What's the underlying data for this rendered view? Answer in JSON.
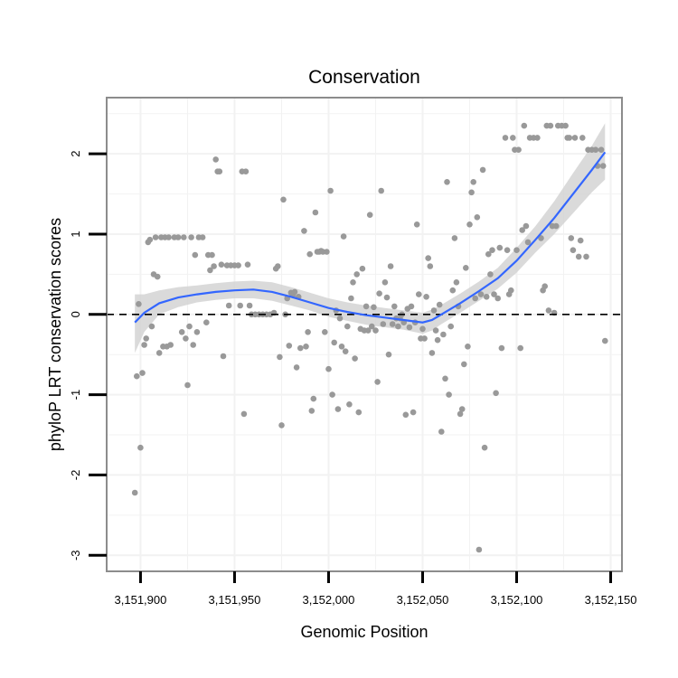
{
  "chart_data": {
    "type": "scatter",
    "title": "Conservation",
    "xlabel": "Genomic Position",
    "ylabel": "phyloP LRT conservation scores",
    "xlim": [
      3151882,
      3152156
    ],
    "ylim": [
      -3.2,
      2.7
    ],
    "x_ticks": [
      3151900,
      3151950,
      3152000,
      3152050,
      3152100,
      3152150
    ],
    "x_tick_labels": [
      "3,151,900",
      "3,151,950",
      "3,152,000",
      "3,152,050",
      "3,152,100",
      "3,152,150"
    ],
    "y_ticks": [
      -3,
      -2,
      -1,
      0,
      1,
      2
    ],
    "y_tick_labels": [
      "-3",
      "-2",
      "-1",
      "0",
      "1",
      "2"
    ],
    "grid": true,
    "reference_line": {
      "y": 0,
      "style": "dashed"
    },
    "colors": {
      "points": "#999999",
      "smooth": "#3366ff",
      "ribbon": "#d3d3d3",
      "grid": "#f2f2f2",
      "panel_border": "#8c8c8c",
      "reference": "#000000"
    },
    "points": [
      [
        3151897,
        -2.22
      ],
      [
        3151898,
        -0.77
      ],
      [
        3151899,
        0.13
      ],
      [
        3151900,
        -1.66
      ],
      [
        3151901,
        -0.73
      ],
      [
        3151902,
        -0.38
      ],
      [
        3151903,
        -0.3
      ],
      [
        3151904,
        0.9
      ],
      [
        3151905,
        0.93
      ],
      [
        3151906,
        -0.15
      ],
      [
        3151907,
        0.5
      ],
      [
        3151908,
        0.96
      ],
      [
        3151909,
        0.47
      ],
      [
        3151910,
        -0.48
      ],
      [
        3151911,
        0.96
      ],
      [
        3151912,
        -0.4
      ],
      [
        3151913,
        0.96
      ],
      [
        3151914,
        -0.4
      ],
      [
        3151915,
        0.96
      ],
      [
        3151916,
        -0.38
      ],
      [
        3151918,
        0.96
      ],
      [
        3151920,
        0.96
      ],
      [
        3151922,
        -0.22
      ],
      [
        3151923,
        0.96
      ],
      [
        3151924,
        -0.3
      ],
      [
        3151925,
        -0.88
      ],
      [
        3151926,
        -0.15
      ],
      [
        3151927,
        0.96
      ],
      [
        3151928,
        -0.38
      ],
      [
        3151929,
        0.74
      ],
      [
        3151930,
        -0.22
      ],
      [
        3151931,
        0.96
      ],
      [
        3151933,
        0.96
      ],
      [
        3151935,
        -0.1
      ],
      [
        3151936,
        0.74
      ],
      [
        3151937,
        0.55
      ],
      [
        3151938,
        0.74
      ],
      [
        3151939,
        0.6
      ],
      [
        3151940,
        1.93
      ],
      [
        3151941,
        1.78
      ],
      [
        3151942,
        1.78
      ],
      [
        3151943,
        0.62
      ],
      [
        3151944,
        -0.52
      ],
      [
        3151946,
        0.61
      ],
      [
        3151947,
        0.11
      ],
      [
        3151948,
        0.61
      ],
      [
        3151950,
        0.61
      ],
      [
        3151952,
        0.61
      ],
      [
        3151953,
        0.11
      ],
      [
        3151954,
        1.78
      ],
      [
        3151955,
        -1.24
      ],
      [
        3151956,
        1.78
      ],
      [
        3151957,
        0.62
      ],
      [
        3151958,
        0.11
      ],
      [
        3151959,
        0.0
      ],
      [
        3151961,
        0.0
      ],
      [
        3151963,
        0.0
      ],
      [
        3151965,
        0.0
      ],
      [
        3151967,
        0.0
      ],
      [
        3151969,
        0.0
      ],
      [
        3151971,
        0.02
      ],
      [
        3151972,
        0.57
      ],
      [
        3151973,
        0.6
      ],
      [
        3151974,
        -0.53
      ],
      [
        3151975,
        -1.38
      ],
      [
        3151976,
        1.43
      ],
      [
        3151977,
        0.0
      ],
      [
        3151978,
        0.2
      ],
      [
        3151979,
        -0.39
      ],
      [
        3151980,
        0.27
      ],
      [
        3151981,
        0.24
      ],
      [
        3151982,
        0.28
      ],
      [
        3151983,
        -0.66
      ],
      [
        3151984,
        0.22
      ],
      [
        3151985,
        -0.42
      ],
      [
        3151987,
        1.04
      ],
      [
        3151988,
        -0.4
      ],
      [
        3151989,
        -0.22
      ],
      [
        3151990,
        0.75
      ],
      [
        3151991,
        -1.2
      ],
      [
        3151992,
        -1.05
      ],
      [
        3151993,
        1.27
      ],
      [
        3151994,
        0.78
      ],
      [
        3151995,
        0.78
      ],
      [
        3151996,
        0.79
      ],
      [
        3151997,
        0.78
      ],
      [
        3151998,
        -0.22
      ],
      [
        3151999,
        0.78
      ],
      [
        3152000,
        -0.68
      ],
      [
        3152001,
        1.54
      ],
      [
        3152002,
        -1.0
      ],
      [
        3152003,
        -0.35
      ],
      [
        3152004,
        0.05
      ],
      [
        3152005,
        -1.18
      ],
      [
        3152006,
        -0.05
      ],
      [
        3152007,
        -0.4
      ],
      [
        3152008,
        0.97
      ],
      [
        3152009,
        -0.46
      ],
      [
        3152010,
        -0.15
      ],
      [
        3152011,
        -1.12
      ],
      [
        3152012,
        0.2
      ],
      [
        3152013,
        0.4
      ],
      [
        3152014,
        -0.55
      ],
      [
        3152015,
        0.5
      ],
      [
        3152016,
        -1.22
      ],
      [
        3152017,
        -0.18
      ],
      [
        3152018,
        0.57
      ],
      [
        3152019,
        -0.2
      ],
      [
        3152020,
        0.1
      ],
      [
        3152021,
        -0.2
      ],
      [
        3152022,
        1.24
      ],
      [
        3152023,
        -0.15
      ],
      [
        3152024,
        0.09
      ],
      [
        3152025,
        -0.2
      ],
      [
        3152026,
        -0.84
      ],
      [
        3152027,
        0.26
      ],
      [
        3152028,
        1.54
      ],
      [
        3152029,
        -0.12
      ],
      [
        3152030,
        0.4
      ],
      [
        3152031,
        0.21
      ],
      [
        3152032,
        -0.5
      ],
      [
        3152033,
        0.6
      ],
      [
        3152034,
        -0.12
      ],
      [
        3152035,
        0.1
      ],
      [
        3152036,
        -0.05
      ],
      [
        3152037,
        -0.15
      ],
      [
        3152038,
        -0.05
      ],
      [
        3152039,
        0.0
      ],
      [
        3152040,
        -0.1
      ],
      [
        3152041,
        -1.25
      ],
      [
        3152042,
        0.07
      ],
      [
        3152043,
        -0.16
      ],
      [
        3152044,
        0.1
      ],
      [
        3152045,
        -1.22
      ],
      [
        3152046,
        -0.1
      ],
      [
        3152047,
        1.12
      ],
      [
        3152048,
        0.25
      ],
      [
        3152049,
        -0.3
      ],
      [
        3152050,
        -0.18
      ],
      [
        3152051,
        -0.3
      ],
      [
        3152052,
        0.22
      ],
      [
        3152053,
        0.7
      ],
      [
        3152054,
        0.6
      ],
      [
        3152055,
        -0.48
      ],
      [
        3152056,
        0.05
      ],
      [
        3152057,
        -0.2
      ],
      [
        3152058,
        -0.32
      ],
      [
        3152059,
        0.12
      ],
      [
        3152060,
        -1.46
      ],
      [
        3152061,
        -0.25
      ],
      [
        3152062,
        -0.8
      ],
      [
        3152063,
        1.65
      ],
      [
        3152064,
        -1.0
      ],
      [
        3152065,
        -0.15
      ],
      [
        3152066,
        0.3
      ],
      [
        3152067,
        0.95
      ],
      [
        3152068,
        0.4
      ],
      [
        3152069,
        0.1
      ],
      [
        3152070,
        -1.24
      ],
      [
        3152071,
        -1.18
      ],
      [
        3152072,
        -0.62
      ],
      [
        3152073,
        0.58
      ],
      [
        3152074,
        -0.4
      ],
      [
        3152075,
        1.12
      ],
      [
        3152076,
        1.52
      ],
      [
        3152077,
        1.65
      ],
      [
        3152078,
        0.2
      ],
      [
        3152079,
        1.21
      ],
      [
        3152080,
        -2.93
      ],
      [
        3152081,
        0.25
      ],
      [
        3152082,
        1.8
      ],
      [
        3152083,
        -1.66
      ],
      [
        3152084,
        0.22
      ],
      [
        3152085,
        0.75
      ],
      [
        3152086,
        0.5
      ],
      [
        3152087,
        0.8
      ],
      [
        3152088,
        0.25
      ],
      [
        3152089,
        -0.98
      ],
      [
        3152090,
        0.2
      ],
      [
        3152091,
        0.83
      ],
      [
        3152092,
        -0.42
      ],
      [
        3152094,
        2.2
      ],
      [
        3152095,
        0.8
      ],
      [
        3152096,
        0.25
      ],
      [
        3152097,
        0.3
      ],
      [
        3152098,
        2.2
      ],
      [
        3152099,
        2.05
      ],
      [
        3152100,
        0.8
      ],
      [
        3152101,
        2.05
      ],
      [
        3152102,
        -0.42
      ],
      [
        3152103,
        1.05
      ],
      [
        3152104,
        2.35
      ],
      [
        3152105,
        1.1
      ],
      [
        3152106,
        0.9
      ],
      [
        3152107,
        2.2
      ],
      [
        3152109,
        2.2
      ],
      [
        3152111,
        2.2
      ],
      [
        3152113,
        0.95
      ],
      [
        3152114,
        0.3
      ],
      [
        3152115,
        0.35
      ],
      [
        3152116,
        2.35
      ],
      [
        3152117,
        0.05
      ],
      [
        3152118,
        2.35
      ],
      [
        3152119,
        1.1
      ],
      [
        3152120,
        0.02
      ],
      [
        3152121,
        1.1
      ],
      [
        3152122,
        2.35
      ],
      [
        3152124,
        2.35
      ],
      [
        3152126,
        2.35
      ],
      [
        3152127,
        2.2
      ],
      [
        3152128,
        2.2
      ],
      [
        3152129,
        0.95
      ],
      [
        3152130,
        0.8
      ],
      [
        3152131,
        2.2
      ],
      [
        3152133,
        0.72
      ],
      [
        3152134,
        0.92
      ],
      [
        3152135,
        2.2
      ],
      [
        3152137,
        0.72
      ],
      [
        3152138,
        2.05
      ],
      [
        3152140,
        2.05
      ],
      [
        3152142,
        2.05
      ],
      [
        3152143,
        1.85
      ],
      [
        3152145,
        2.05
      ],
      [
        3152146,
        1.85
      ],
      [
        3152147,
        -0.33
      ]
    ],
    "smooth": {
      "x": [
        3151897,
        3151902,
        3151910,
        3151920,
        3151930,
        3151940,
        3151950,
        3151960,
        3151970,
        3151980,
        3151990,
        3152000,
        3152010,
        3152020,
        3152030,
        3152040,
        3152050,
        3152055,
        3152060,
        3152070,
        3152080,
        3152090,
        3152100,
        3152110,
        3152120,
        3152130,
        3152140,
        3152147
      ],
      "y": [
        -0.1,
        0.02,
        0.14,
        0.21,
        0.25,
        0.28,
        0.3,
        0.31,
        0.28,
        0.22,
        0.15,
        0.08,
        0.03,
        -0.01,
        -0.04,
        -0.07,
        -0.1,
        -0.07,
        0.0,
        0.14,
        0.29,
        0.45,
        0.67,
        0.93,
        1.2,
        1.5,
        1.8,
        2.02
      ],
      "lower": [
        -0.48,
        -0.22,
        0.0,
        0.09,
        0.15,
        0.18,
        0.2,
        0.2,
        0.17,
        0.11,
        0.05,
        -0.03,
        -0.08,
        -0.13,
        -0.16,
        -0.19,
        -0.24,
        -0.2,
        -0.12,
        0.02,
        0.17,
        0.32,
        0.52,
        0.77,
        1.0,
        1.26,
        1.52,
        1.68
      ],
      "upper": [
        0.25,
        0.25,
        0.3,
        0.34,
        0.36,
        0.39,
        0.41,
        0.42,
        0.4,
        0.34,
        0.27,
        0.2,
        0.15,
        0.11,
        0.08,
        0.05,
        0.02,
        0.06,
        0.12,
        0.26,
        0.41,
        0.58,
        0.83,
        1.1,
        1.41,
        1.76,
        2.1,
        2.38
      ]
    }
  }
}
